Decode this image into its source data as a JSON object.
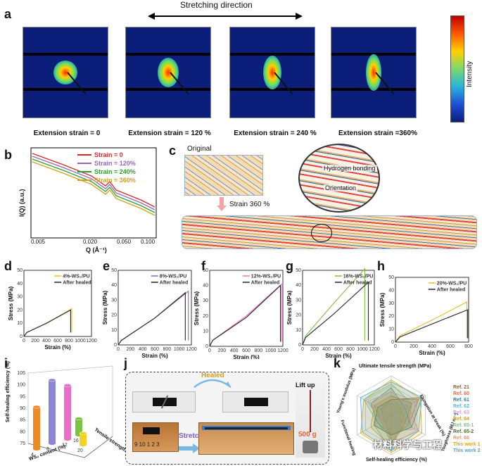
{
  "panels": {
    "a": "a",
    "b": "b",
    "c": "c",
    "d": "d",
    "e": "e",
    "f": "f",
    "g": "g",
    "h": "h",
    "i": "i",
    "j": "j",
    "k": "k"
  },
  "panel_a": {
    "direction_label": "Stretching direction",
    "captions": [
      "Extension strain = 0",
      "Extension strain = 120 %",
      "Extension strain = 240 %",
      "Extension strain =360%"
    ],
    "colorbar_label": "Intensity"
  },
  "panel_b": {
    "ylabel": "I(Q) (a.u.)",
    "xlabel": "Q (Å⁻¹)",
    "ticks": [
      "0.005",
      "0.020",
      "0.050",
      "0.100"
    ],
    "legend": [
      {
        "name": "Strain = 0",
        "color": "#d62728"
      },
      {
        "name": "Strain = 120%",
        "color": "#9467bd"
      },
      {
        "name": "Strain = 240%",
        "color": "#2ca02c"
      },
      {
        "name": "Strain = 360%",
        "color": "#d4a017"
      }
    ]
  },
  "panel_c": {
    "original": "Original",
    "strain": "Strain 360 %",
    "hbond": "Hydrogen bonding",
    "orientation": "Orientation"
  },
  "tensile": [
    {
      "id": "d",
      "legend": "4%-WS₂/PU",
      "healed": "After healed",
      "color": "#e6c229",
      "ylabel": "Stress (MPa)",
      "xlabel": "Strain (%)",
      "yticks": [
        "0",
        "10",
        "20",
        "30",
        "40",
        "50"
      ],
      "xticks": [
        "0",
        "200",
        "400",
        "600",
        "800",
        "1000",
        "1200"
      ]
    },
    {
      "id": "e",
      "legend": "8%-WS₂/PU",
      "healed": "After healed",
      "color": "#9467bd",
      "ylabel": "Stress (MPa)",
      "xlabel": "Strain (%)",
      "yticks": [
        "0",
        "10",
        "20",
        "30",
        "40",
        "50"
      ],
      "xticks": [
        "0",
        "200",
        "400",
        "600",
        "800",
        "1000",
        "1200"
      ]
    },
    {
      "id": "f",
      "legend": "12%-WS₂/PU",
      "healed": "After healed",
      "color": "#e377c2",
      "ylabel": "Stress (MPa)",
      "xlabel": "Strain (%)",
      "yticks": [
        "0",
        "10",
        "20",
        "30",
        "40",
        "50"
      ],
      "xticks": [
        "0",
        "200",
        "400",
        "600",
        "800",
        "1000",
        "1200"
      ]
    },
    {
      "id": "g",
      "legend": "16%-WS₂/PU",
      "healed": "After healed",
      "color": "#7cc242",
      "ylabel": "Stress (MPa)",
      "xlabel": "Strain (%)",
      "yticks": [
        "0",
        "10",
        "20",
        "30",
        "40",
        "50"
      ],
      "xticks": [
        "0",
        "200",
        "400",
        "600",
        "800",
        "1000",
        "1200"
      ]
    },
    {
      "id": "h",
      "legend": "20%-WS₂/PU",
      "healed": "After healed",
      "color": "#e6c229",
      "ylabel": "Stress (MPa)",
      "xlabel": "Strain (%)",
      "yticks": [
        "0",
        "10",
        "20",
        "30",
        "40",
        "50"
      ],
      "xticks": [
        "0",
        "200",
        "400",
        "600",
        "800"
      ]
    }
  ],
  "chart_data": [
    {
      "type": "line",
      "title": "d",
      "xlabel": "Strain (%)",
      "ylabel": "Stress (MPa)",
      "xlim": [
        0,
        1200
      ],
      "ylim": [
        0,
        50
      ],
      "series": [
        {
          "name": "4%-WS₂/PU",
          "x": [
            0,
            50,
            400,
            850,
            850
          ],
          "y": [
            0,
            3,
            10,
            21,
            3
          ]
        },
        {
          "name": "After healed",
          "x": [
            0,
            50,
            400,
            830,
            830
          ],
          "y": [
            0,
            3,
            10,
            20,
            3
          ]
        }
      ]
    },
    {
      "type": "line",
      "title": "e",
      "xlabel": "Strain (%)",
      "ylabel": "Stress (MPa)",
      "xlim": [
        0,
        1200
      ],
      "ylim": [
        0,
        50
      ],
      "series": [
        {
          "name": "8%-WS₂/PU",
          "x": [
            0,
            50,
            600,
            1150,
            1150
          ],
          "y": [
            0,
            3,
            18,
            36,
            3
          ]
        },
        {
          "name": "After healed",
          "x": [
            0,
            50,
            600,
            1100,
            1100
          ],
          "y": [
            0,
            3,
            18,
            35,
            3
          ]
        }
      ]
    },
    {
      "type": "line",
      "title": "f",
      "xlabel": "Strain (%)",
      "ylabel": "Stress (MPa)",
      "xlim": [
        0,
        1200
      ],
      "ylim": [
        0,
        50
      ],
      "series": [
        {
          "name": "12%-WS₂/PU",
          "x": [
            0,
            50,
            600,
            1180,
            1180
          ],
          "y": [
            0,
            4,
            20,
            41,
            3
          ]
        },
        {
          "name": "After healed",
          "x": [
            0,
            50,
            600,
            1160,
            1160
          ],
          "y": [
            0,
            4,
            19,
            40,
            3
          ]
        }
      ]
    },
    {
      "type": "line",
      "title": "g",
      "xlabel": "Strain (%)",
      "ylabel": "Stress (MPa)",
      "xlim": [
        0,
        1200
      ],
      "ylim": [
        0,
        50
      ],
      "series": [
        {
          "name": "16%-WS₂/PU",
          "x": [
            0,
            50,
            500,
            1040,
            1040
          ],
          "y": [
            0,
            6,
            27,
            51,
            3
          ]
        },
        {
          "name": "After healed",
          "x": [
            0,
            50,
            500,
            1100,
            1100
          ],
          "y": [
            0,
            5,
            20,
            42,
            3
          ]
        }
      ]
    },
    {
      "type": "line",
      "title": "h",
      "xlabel": "Strain (%)",
      "ylabel": "Stress (MPa)",
      "xlim": [
        0,
        800
      ],
      "ylim": [
        0,
        50
      ],
      "series": [
        {
          "name": "20%-WS₂/PU",
          "x": [
            0,
            50,
            400,
            780,
            780
          ],
          "y": [
            0,
            5,
            17,
            31,
            3
          ]
        },
        {
          "name": "After healed",
          "x": [
            0,
            50,
            400,
            790,
            790
          ],
          "y": [
            0,
            4,
            14,
            25,
            3
          ]
        }
      ]
    }
  ],
  "panel_i": {
    "zlabel": "Self-healing efficiency (%)",
    "xlabel": "WS₂ content (%)",
    "ylabel": "Tensile strength (MPa)",
    "zticks": [
      "75",
      "80",
      "85",
      "90",
      "95",
      "100",
      "105"
    ],
    "bars": [
      {
        "content": "4",
        "efficiency": 93,
        "color": "#f08a24"
      },
      {
        "content": "8",
        "efficiency": 102,
        "color": "#8c86d9"
      },
      {
        "content": "12",
        "efficiency": 98,
        "color": "#e86fc4"
      },
      {
        "content": "16",
        "efficiency": 82,
        "color": "#7cc242"
      },
      {
        "content": "20",
        "efficiency": 80,
        "color": "#f2d024"
      }
    ]
  },
  "panel_j": {
    "healed": "Healed",
    "stretch": "Stretch",
    "lift": "Lift up",
    "weight": "500 g",
    "ruler": "9 10 1 2 3"
  },
  "panel_k": {
    "axes": [
      "Ultimate tensile strength (MPa)",
      "Elongation at break (%)",
      "Toughness (MJ m⁻³)",
      "Self-healing efficiency (%)",
      "Functional healing",
      "Young's modulus (MPa)"
    ],
    "refs": [
      {
        "name": "Ref. 21",
        "color": "#8b5e3c"
      },
      {
        "name": "Ref. 60",
        "color": "#e8643c"
      },
      {
        "name": "Ref. 61",
        "color": "#2f7f8f"
      },
      {
        "name": "Ref. 62",
        "color": "#56b4d3"
      },
      {
        "name": "Ref. 63",
        "color": "#c9a0dc"
      },
      {
        "name": "Ref. 64",
        "color": "#d4a017"
      },
      {
        "name": "Ref. 65-1",
        "color": "#7fbf7f"
      },
      {
        "name": "Ref. 65-2",
        "color": "#4a6b2a"
      },
      {
        "name": "Ref. 66",
        "color": "#d99a6c"
      },
      {
        "name": "This work 1",
        "color": "#e6a800"
      },
      {
        "name": "This work 2",
        "color": "#4fa3d9"
      }
    ],
    "watermark": "材料科学与工程"
  }
}
